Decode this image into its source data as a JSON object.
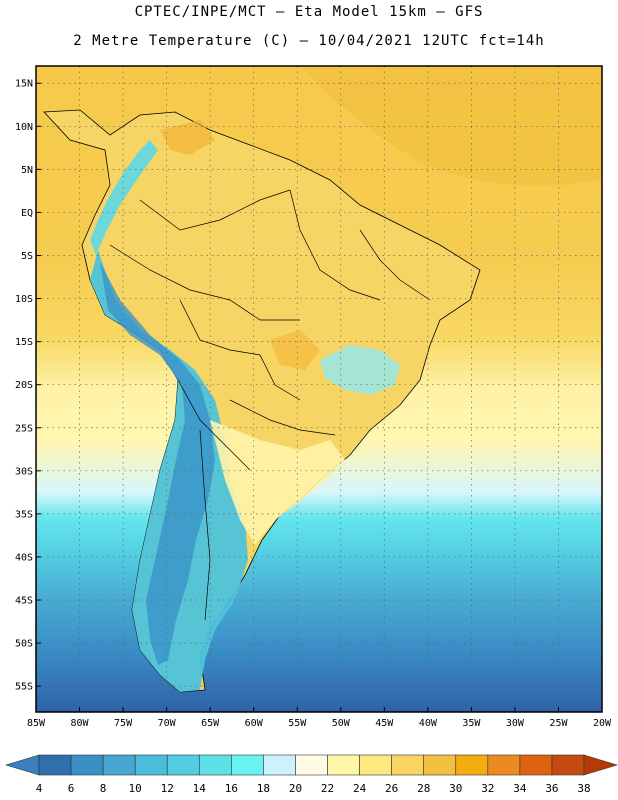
{
  "header": {
    "line1": "CPTEC/INPE/MCT –  Eta Model 15km – GFS",
    "line2": "2 Metre Temperature (C) – 10/04/2021 12UTC fct=14h"
  },
  "map": {
    "region": "South America",
    "lon_range": [
      -85,
      -20
    ],
    "lat_range": [
      -58,
      17
    ],
    "lat_ticks": [
      {
        "value": 15,
        "label": "15N"
      },
      {
        "value": 10,
        "label": "10N"
      },
      {
        "value": 5,
        "label": "5N"
      },
      {
        "value": 0,
        "label": "EQ"
      },
      {
        "value": -5,
        "label": "5S"
      },
      {
        "value": -10,
        "label": "10S"
      },
      {
        "value": -15,
        "label": "15S"
      },
      {
        "value": -20,
        "label": "20S"
      },
      {
        "value": -25,
        "label": "25S"
      },
      {
        "value": -30,
        "label": "30S"
      },
      {
        "value": -35,
        "label": "35S"
      },
      {
        "value": -40,
        "label": "40S"
      },
      {
        "value": -45,
        "label": "45S"
      },
      {
        "value": -50,
        "label": "50S"
      },
      {
        "value": -55,
        "label": "55S"
      }
    ],
    "lon_ticks": [
      {
        "value": -85,
        "label": "85W"
      },
      {
        "value": -80,
        "label": "80W"
      },
      {
        "value": -75,
        "label": "75W"
      },
      {
        "value": -70,
        "label": "70W"
      },
      {
        "value": -65,
        "label": "65W"
      },
      {
        "value": -60,
        "label": "60W"
      },
      {
        "value": -55,
        "label": "55W"
      },
      {
        "value": -50,
        "label": "50W"
      },
      {
        "value": -45,
        "label": "45W"
      },
      {
        "value": -40,
        "label": "40W"
      },
      {
        "value": -35,
        "label": "35W"
      },
      {
        "value": -30,
        "label": "30W"
      },
      {
        "value": -25,
        "label": "25W"
      },
      {
        "value": -20,
        "label": "20W"
      }
    ]
  },
  "colorbar": {
    "levels": [
      "4",
      "6",
      "8",
      "10",
      "12",
      "14",
      "16",
      "18",
      "20",
      "22",
      "24",
      "26",
      "28",
      "30",
      "32",
      "34",
      "36",
      "38"
    ],
    "colors": [
      "#3b7fbf",
      "#2f6fae",
      "#3a8fc5",
      "#48a7d2",
      "#4cbcdb",
      "#52cde1",
      "#5de0e8",
      "#68f2f0",
      "#ccf2fb",
      "#fffbe6",
      "#fff7a6",
      "#ffe880",
      "#f9d460",
      "#f3c040",
      "#f3ad10",
      "#ec8a20",
      "#df6210",
      "#c34a10",
      "#b63a08"
    ]
  }
}
